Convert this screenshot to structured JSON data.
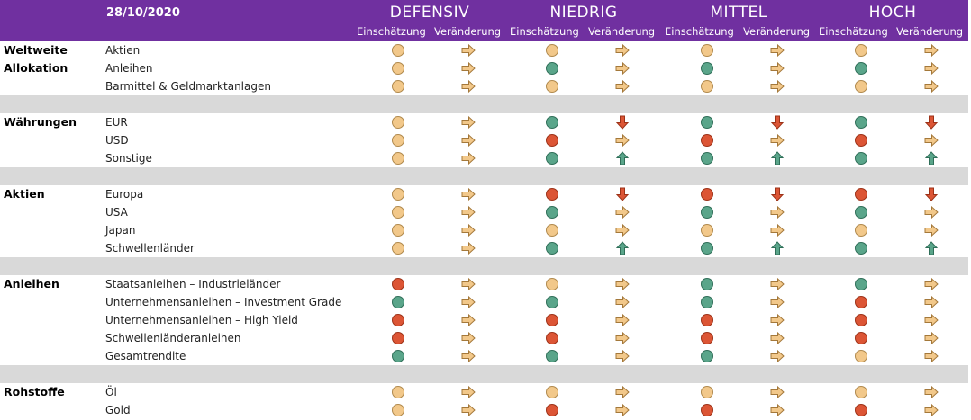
{
  "header": {
    "date": "28/10/2020",
    "groups": [
      "DEFENSIV",
      "NIEDRIG",
      "MITTEL",
      "HOCH"
    ],
    "sub_einschaetzung": "Einschätzung",
    "sub_veraenderung": "Veränderung"
  },
  "colors": {
    "header_bg": "#7030a0",
    "separator": "#d9d9d9",
    "neutral": "#f2c88a",
    "positive": "#5aa58a",
    "negative": "#dc5535"
  },
  "icons": {
    "right": "arrow-right-icon",
    "down": "arrow-down-icon",
    "up": "arrow-up-icon"
  },
  "sections": [
    {
      "category_lines": [
        "Weltweite",
        "Allokation"
      ],
      "rows": [
        {
          "label": "Aktien",
          "values": [
            [
              "neutral",
              "right"
            ],
            [
              "neutral",
              "right"
            ],
            [
              "neutral",
              "right"
            ],
            [
              "neutral",
              "right"
            ]
          ]
        },
        {
          "label": "Anleihen",
          "values": [
            [
              "neutral",
              "right"
            ],
            [
              "positive",
              "right"
            ],
            [
              "positive",
              "right"
            ],
            [
              "positive",
              "right"
            ]
          ]
        },
        {
          "label": "Barmittel & Geldmarktanlagen",
          "values": [
            [
              "neutral",
              "right"
            ],
            [
              "neutral",
              "right"
            ],
            [
              "neutral",
              "right"
            ],
            [
              "neutral",
              "right"
            ]
          ]
        }
      ]
    },
    {
      "category_lines": [
        "Währungen"
      ],
      "rows": [
        {
          "label": "EUR",
          "values": [
            [
              "neutral",
              "right"
            ],
            [
              "positive",
              "down"
            ],
            [
              "positive",
              "down"
            ],
            [
              "positive",
              "down"
            ]
          ]
        },
        {
          "label": "USD",
          "values": [
            [
              "neutral",
              "right"
            ],
            [
              "negative",
              "right"
            ],
            [
              "negative",
              "right"
            ],
            [
              "negative",
              "right"
            ]
          ]
        },
        {
          "label": "Sonstige",
          "values": [
            [
              "neutral",
              "right"
            ],
            [
              "positive",
              "up"
            ],
            [
              "positive",
              "up"
            ],
            [
              "positive",
              "up"
            ]
          ]
        }
      ]
    },
    {
      "category_lines": [
        "Aktien"
      ],
      "rows": [
        {
          "label": "Europa",
          "values": [
            [
              "neutral",
              "right"
            ],
            [
              "negative",
              "down"
            ],
            [
              "negative",
              "down"
            ],
            [
              "negative",
              "down"
            ]
          ]
        },
        {
          "label": "USA",
          "values": [
            [
              "neutral",
              "right"
            ],
            [
              "positive",
              "right"
            ],
            [
              "positive",
              "right"
            ],
            [
              "positive",
              "right"
            ]
          ]
        },
        {
          "label": "Japan",
          "values": [
            [
              "neutral",
              "right"
            ],
            [
              "neutral",
              "right"
            ],
            [
              "neutral",
              "right"
            ],
            [
              "neutral",
              "right"
            ]
          ]
        },
        {
          "label": "Schwellenländer",
          "values": [
            [
              "neutral",
              "right"
            ],
            [
              "positive",
              "up"
            ],
            [
              "positive",
              "up"
            ],
            [
              "positive",
              "up"
            ]
          ]
        }
      ]
    },
    {
      "category_lines": [
        "Anleihen"
      ],
      "rows": [
        {
          "label": "Staatsanleihen – Industrieländer",
          "values": [
            [
              "negative",
              "right"
            ],
            [
              "neutral",
              "right"
            ],
            [
              "positive",
              "right"
            ],
            [
              "positive",
              "right"
            ]
          ]
        },
        {
          "label": "Unternehmensanleihen – Investment Grade",
          "values": [
            [
              "positive",
              "right"
            ],
            [
              "positive",
              "right"
            ],
            [
              "positive",
              "right"
            ],
            [
              "negative",
              "right"
            ]
          ]
        },
        {
          "label": "Unternehmensanleihen – High Yield",
          "values": [
            [
              "negative",
              "right"
            ],
            [
              "negative",
              "right"
            ],
            [
              "negative",
              "right"
            ],
            [
              "negative",
              "right"
            ]
          ]
        },
        {
          "label": "Schwellenländeranleihen",
          "values": [
            [
              "negative",
              "right"
            ],
            [
              "negative",
              "right"
            ],
            [
              "negative",
              "right"
            ],
            [
              "negative",
              "right"
            ]
          ]
        },
        {
          "label": "Gesamtrendite",
          "values": [
            [
              "positive",
              "right"
            ],
            [
              "positive",
              "right"
            ],
            [
              "positive",
              "right"
            ],
            [
              "neutral",
              "right"
            ]
          ]
        }
      ]
    },
    {
      "category_lines": [
        "Rohstoffe"
      ],
      "rows": [
        {
          "label": "Öl",
          "values": [
            [
              "neutral",
              "right"
            ],
            [
              "neutral",
              "right"
            ],
            [
              "neutral",
              "right"
            ],
            [
              "neutral",
              "right"
            ]
          ]
        },
        {
          "label": "Gold",
          "values": [
            [
              "neutral",
              "right"
            ],
            [
              "negative",
              "right"
            ],
            [
              "negative",
              "right"
            ],
            [
              "negative",
              "right"
            ]
          ]
        }
      ]
    }
  ]
}
